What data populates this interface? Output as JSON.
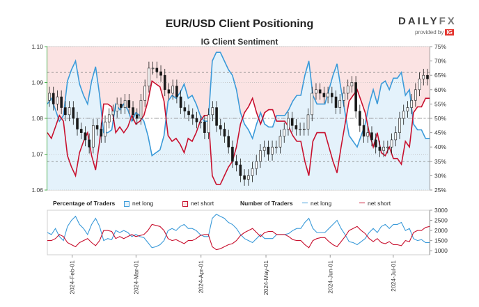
{
  "header": {
    "title": "EUR/USD Client Positioning",
    "subtitle": "IG Client Sentiment",
    "logo_text_a": "DAILY",
    "logo_text_b": "FX",
    "logo_sub": "provided by",
    "logo_brand": "IG"
  },
  "legend": {
    "pct_title": "Percentage of Traders",
    "num_title": "Number of Traders",
    "net_long": "net long",
    "net_short": "net short"
  },
  "colors": {
    "long": "#3a9ad9",
    "short": "#c8102e",
    "candle": "#1a1a1a",
    "long_fill": "#e4f2fb",
    "short_fill": "#fbe3e3",
    "axis_green": "#4caf50"
  },
  "chart_data": [
    {
      "type": "candlestick_with_sentiment",
      "title": "EUR/USD Client Positioning",
      "subtitle": "IG Client Sentiment",
      "y_left_ticks": [
        "1.06",
        "1.07",
        "1.08",
        "1.09",
        "1.10"
      ],
      "ylim_left": [
        1.06,
        1.1
      ],
      "y_right_ticks": [
        "25%",
        "30%",
        "35%",
        "40%",
        "45%",
        "50%",
        "55%",
        "60%",
        "65%",
        "70%",
        "75%"
      ],
      "ylim_right": [
        25,
        75
      ],
      "reference_lines_pct": [
        35,
        50,
        66
      ],
      "x_ticks": [
        "2024-Feb-01",
        "2024-Mar-01",
        "2024-Apr-01",
        "2024-May-01",
        "2024-Jun-01",
        "2024-Jul-01"
      ],
      "price_close": [
        1.087,
        1.084,
        1.086,
        1.083,
        1.081,
        1.083,
        1.08,
        1.077,
        1.076,
        1.074,
        1.072,
        1.078,
        1.077,
        1.075,
        1.079,
        1.081,
        1.082,
        1.084,
        1.083,
        1.085,
        1.083,
        1.081,
        1.08,
        1.085,
        1.089,
        1.094,
        1.094,
        1.093,
        1.092,
        1.088,
        1.087,
        1.089,
        1.086,
        1.083,
        1.082,
        1.081,
        1.08,
        1.079,
        1.079,
        1.076,
        1.081,
        1.083,
        1.078,
        1.077,
        1.075,
        1.072,
        1.068,
        1.067,
        1.064,
        1.063,
        1.064,
        1.066,
        1.068,
        1.071,
        1.072,
        1.07,
        1.072,
        1.072,
        1.075,
        1.077,
        1.08,
        1.078,
        1.077,
        1.077,
        1.077,
        1.081,
        1.087,
        1.088,
        1.087,
        1.086,
        1.087,
        1.086,
        1.083,
        1.085,
        1.087,
        1.089,
        1.09,
        1.082,
        1.078,
        1.075,
        1.076,
        1.074,
        1.072,
        1.071,
        1.072,
        1.072,
        1.074,
        1.076,
        1.08,
        1.082,
        1.083,
        1.085,
        1.088,
        1.091,
        1.092,
        1.091
      ],
      "pct_net_long": [
        55,
        57,
        53,
        49,
        51,
        63,
        67,
        70,
        62,
        58,
        55,
        63,
        68,
        58,
        45,
        45,
        46,
        55,
        53,
        55,
        53,
        49,
        52,
        51,
        49,
        44,
        37,
        38,
        39,
        44,
        56,
        58,
        57,
        59,
        62,
        57,
        58,
        55,
        51,
        49,
        49,
        70,
        73,
        73,
        70,
        67,
        65,
        60,
        52,
        48,
        46,
        43,
        48,
        52,
        48,
        47,
        47,
        51,
        51,
        51,
        53,
        56,
        58,
        58,
        65,
        70,
        58,
        55,
        55,
        55,
        60,
        65,
        69,
        60,
        52,
        44,
        42,
        40,
        44,
        48,
        55,
        60,
        55,
        62,
        63,
        60,
        64,
        64,
        66,
        58,
        60,
        48,
        46,
        46,
        43,
        43
      ],
      "pct_net_short": [
        45,
        43,
        47,
        51,
        49,
        37,
        33,
        30,
        38,
        42,
        45,
        37,
        32,
        42,
        55,
        55,
        54,
        45,
        47,
        45,
        47,
        51,
        48,
        49,
        51,
        56,
        63,
        62,
        61,
        56,
        44,
        42,
        43,
        41,
        38,
        43,
        42,
        45,
        49,
        51,
        51,
        30,
        27,
        27,
        30,
        33,
        35,
        40,
        48,
        52,
        54,
        57,
        52,
        48,
        52,
        53,
        53,
        49,
        49,
        49,
        47,
        44,
        42,
        42,
        35,
        30,
        42,
        45,
        45,
        45,
        40,
        35,
        31,
        40,
        48,
        56,
        58,
        60,
        56,
        52,
        45,
        40,
        45,
        38,
        37,
        40,
        36,
        36,
        34,
        42,
        40,
        52,
        54,
        54,
        57,
        57
      ],
      "count_y_ticks": [
        "1000",
        "1500",
        "2000",
        "2500",
        "3000"
      ],
      "count_ylim": [
        800,
        3000
      ],
      "count_net_long": [
        1900,
        1800,
        2100,
        1700,
        1500,
        2200,
        2500,
        2700,
        2300,
        2100,
        1800,
        2300,
        2600,
        2200,
        1500,
        1600,
        1550,
        2000,
        1900,
        2000,
        1900,
        1700,
        1800,
        1700,
        1650,
        1400,
        1150,
        1200,
        1300,
        1500,
        2000,
        2100,
        2000,
        2200,
        2300,
        2100,
        2100,
        2000,
        1800,
        1700,
        1700,
        2600,
        2800,
        2700,
        2600,
        2400,
        2300,
        2100,
        1800,
        1600,
        1500,
        1400,
        1600,
        1800,
        1600,
        1600,
        1600,
        1800,
        1800,
        1800,
        1850,
        2000,
        2100,
        2100,
        2400,
        2600,
        2100,
        1900,
        1900,
        1900,
        2100,
        2300,
        2500,
        2100,
        1800,
        1450,
        1400,
        1300,
        1450,
        1600,
        1900,
        2100,
        1900,
        2200,
        2300,
        2100,
        2300,
        2300,
        2400,
        2000,
        2100,
        1600,
        1500,
        1550,
        1400,
        1400
      ],
      "count_net_short": [
        1500,
        1500,
        1600,
        1800,
        1700,
        1400,
        1300,
        1200,
        1400,
        1500,
        1600,
        1400,
        1250,
        1500,
        2000,
        2000,
        1950,
        1600,
        1700,
        1600,
        1700,
        1800,
        1700,
        1750,
        1800,
        2000,
        2300,
        2250,
        2200,
        2000,
        1600,
        1500,
        1550,
        1450,
        1350,
        1500,
        1500,
        1600,
        1750,
        1800,
        1800,
        1200,
        1050,
        1100,
        1200,
        1300,
        1350,
        1500,
        1750,
        1900,
        2000,
        2100,
        1900,
        1700,
        1900,
        1950,
        1950,
        1800,
        1800,
        1800,
        1700,
        1550,
        1500,
        1500,
        1300,
        1150,
        1500,
        1600,
        1650,
        1650,
        1450,
        1300,
        1200,
        1450,
        1700,
        2000,
        2100,
        2200,
        2000,
        1850,
        1600,
        1450,
        1600,
        1400,
        1350,
        1450,
        1300,
        1300,
        1250,
        1500,
        1450,
        1900,
        2000,
        2000,
        2150,
        2200
      ]
    }
  ]
}
